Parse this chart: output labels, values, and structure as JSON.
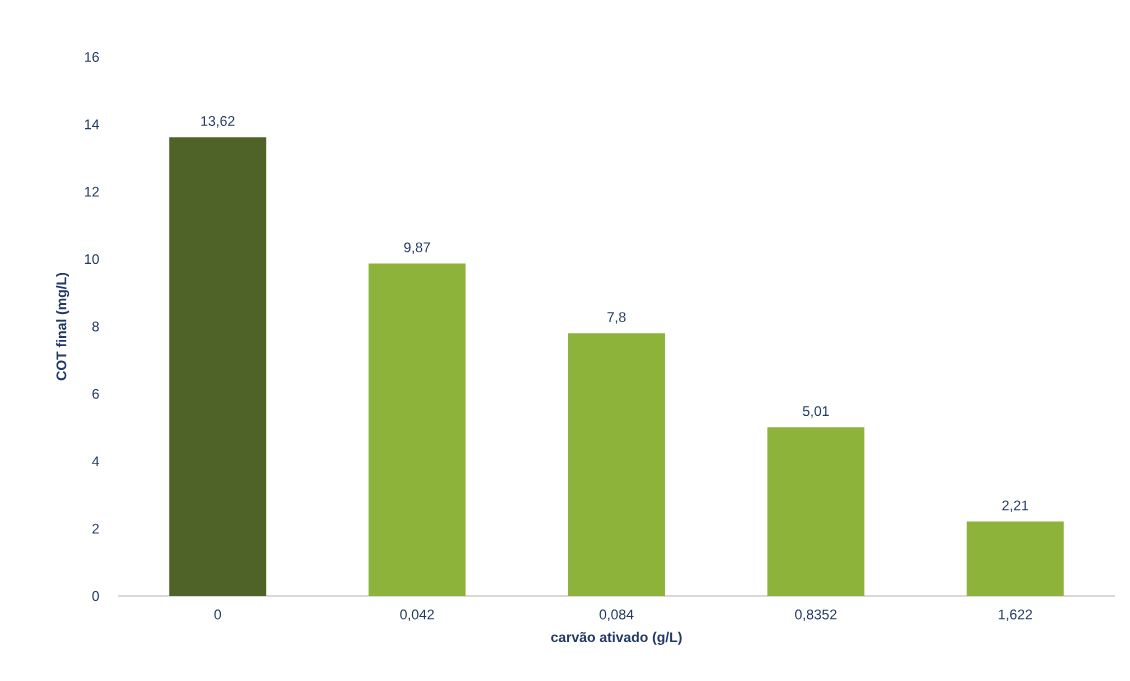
{
  "chart_data": {
    "type": "bar",
    "xlabel": "carvão ativado  (g/L)",
    "ylabel": "COT final (mg/L)",
    "categories": [
      "0",
      "0,042",
      "0,084",
      "0,8352",
      "1,622"
    ],
    "values": [
      13.62,
      9.87,
      7.8,
      5.01,
      2.21
    ],
    "value_labels": [
      "13,62",
      "9,87",
      "7,8",
      "5,01",
      "2,21"
    ],
    "colors": [
      "#4f6228",
      "#8db33a",
      "#8db33a",
      "#8db33a",
      "#8db33a"
    ],
    "ylim": [
      0,
      16
    ],
    "yticks": [
      0,
      2,
      4,
      6,
      8,
      10,
      12,
      14,
      16
    ],
    "grid": false
  }
}
